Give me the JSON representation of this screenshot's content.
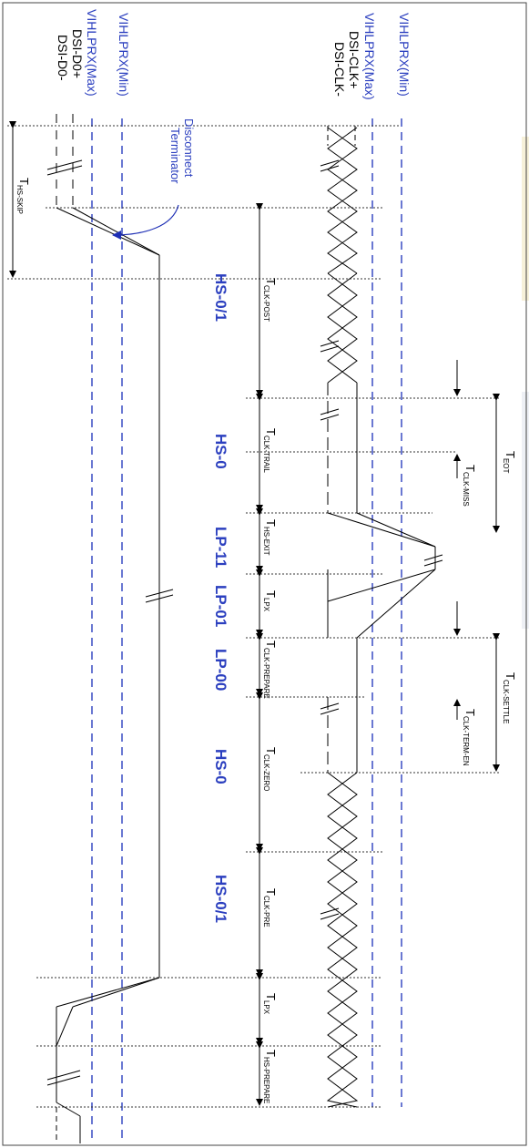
{
  "colors": {
    "ref_line": "#2b3fbf",
    "signal": "#000000",
    "state_text": "#2b3fbf",
    "background": "#ffffff"
  },
  "clock": {
    "min_label": "VIHLPRX(Min)",
    "max_label": "VIHLPRX(Max)",
    "pos_label": "DSI-CLK+",
    "neg_label": "DSI-CLK-"
  },
  "data": {
    "max_label": "VIHLPRX(Max)",
    "min_label": "VIHLPRX(Min)",
    "pos_label": "DSI-D0+",
    "neg_label": "DSI-D0-"
  },
  "annotation": {
    "line1": "Disconnect",
    "line2": "Terminator"
  },
  "states": [
    "HS-0/1",
    "HS-0",
    "LP-11",
    "LP-01",
    "LP-00",
    "HS-0",
    "HS-0/1"
  ],
  "timings": {
    "hs_skip": {
      "main": "T",
      "sub": "HS-SKIP"
    },
    "clk_post": {
      "main": "T",
      "sub": "CLK-POST"
    },
    "clk_trail": {
      "main": "T",
      "sub": "CLK-TRAIL"
    },
    "hs_exit": {
      "main": "T",
      "sub": "HS-EXIT"
    },
    "lpx1": {
      "main": "T",
      "sub": "LPX"
    },
    "clk_prepare": {
      "main": "T",
      "sub": "CLK-PREPARE"
    },
    "clk_zero": {
      "main": "T",
      "sub": "CLK-ZERO"
    },
    "clk_pre": {
      "main": "T",
      "sub": "CLK-PRE"
    },
    "lpx2": {
      "main": "T",
      "sub": "LPX"
    },
    "hs_prepare": {
      "main": "T",
      "sub": "HS-PREPARE"
    },
    "eot": {
      "main": "T",
      "sub": "EOT"
    },
    "clk_miss": {
      "main": "T",
      "sub": "CLK-MISS"
    },
    "clk_settle": {
      "main": "T",
      "sub": "CLK-SETTLE"
    },
    "clk_term_en": {
      "main": "T",
      "sub": "CLK-TERM-EN"
    }
  }
}
